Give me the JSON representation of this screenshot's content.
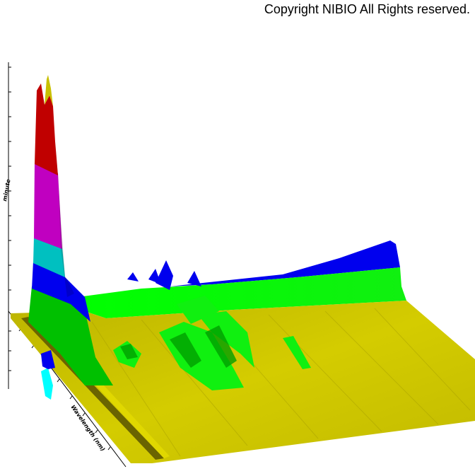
{
  "copyright": "Copyright NIBIO All Rights reserved.",
  "chart_data": {
    "type": "surface-3d",
    "title": "",
    "z_axis_label": "minute",
    "y_axis_label": "Wavelength (nm)",
    "x_axis_label": "",
    "tick_labels": {
      "top_left": "",
      "axis_origin": "",
      "z_bottom": "",
      "wavelength_end": ""
    },
    "color_bands": [
      {
        "level": 1,
        "color": "#c8c000"
      },
      {
        "level": 2,
        "color": "#00c000"
      },
      {
        "level": 3,
        "color": "#00ff00"
      },
      {
        "level": 4,
        "color": "#0000ff"
      },
      {
        "level": 5,
        "color": "#00c0c0"
      },
      {
        "level": 6,
        "color": "#c000c0"
      },
      {
        "level": 7,
        "color": "#c00000"
      },
      {
        "level": 8,
        "color": "#c8c000"
      }
    ],
    "grid": false,
    "legend": "none"
  }
}
